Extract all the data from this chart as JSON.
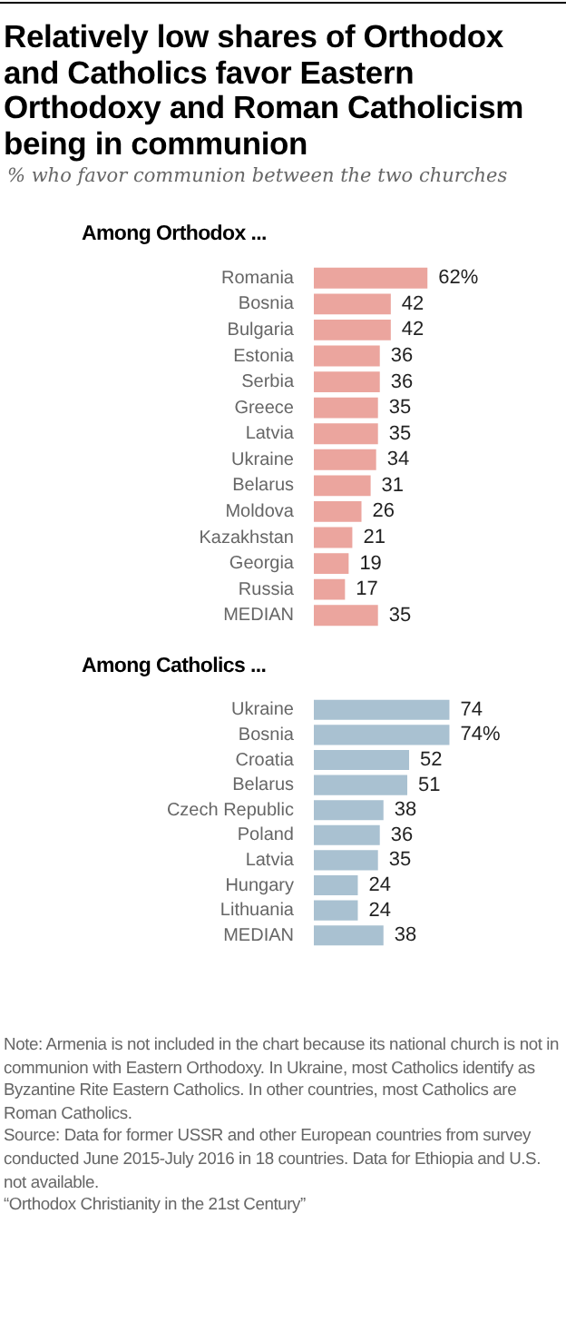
{
  "chart_data": [
    {
      "type": "other",
      "title": "Relatively low shares of Orthodox and Catholics favor Eastern Orthodoxy and Roman Catholicism being in communion",
      "subtitle": "% who favor communion between the two churches"
    },
    {
      "type": "bar",
      "orientation": "horizontal",
      "title": "Among Orthodox ...",
      "tick_labels": "y",
      "categories": [
        "Romania",
        "Bosnia",
        "Bulgaria",
        "Estonia",
        "Serbia",
        "Greece",
        "Latvia",
        "Ukraine",
        "Belarus",
        "Moldova",
        "Kazakhstan",
        "Georgia",
        "Russia",
        "MEDIAN"
      ],
      "values": [
        62,
        42,
        42,
        36,
        36,
        35,
        35,
        34,
        31,
        26,
        21,
        19,
        17,
        35
      ],
      "value_labels": [
        "62%",
        "42",
        "42",
        "36",
        "36",
        "35",
        "35",
        "34",
        "31",
        "26",
        "21",
        "19",
        "17",
        "35"
      ],
      "color": "#eba59e"
    },
    {
      "type": "bar",
      "orientation": "horizontal",
      "title": "Among Catholics ...",
      "tick_labels": "y",
      "categories": [
        "Ukraine",
        "Bosnia",
        "Croatia",
        "Belarus",
        "Czech Republic",
        "Poland",
        "Latvia",
        "Hungary",
        "Lithuania",
        "MEDIAN"
      ],
      "values": [
        74,
        74,
        52,
        51,
        38,
        36,
        35,
        24,
        24,
        38
      ],
      "value_labels": [
        "74",
        "74%",
        "52",
        "51",
        "38",
        "36",
        "35",
        "24",
        "24",
        "38"
      ],
      "color": "#a9c1d1",
      "annotations": [
        "Note: Armenia is not included in the chart because its national church is not in communion with Eastern Orthodoxy. In Ukraine, most Catholics identify as Byzantine Rite Eastern Catholics. In other countries, most Catholics are Roman Catholics.",
        "Source: Data for former USSR and other European countries from survey conducted June 2015-July 2016 in 18 countries. Data for Ethiopia and U.S. not available.",
        "“Orthodox Christianity in the 21st Century”"
      ]
    }
  ]
}
